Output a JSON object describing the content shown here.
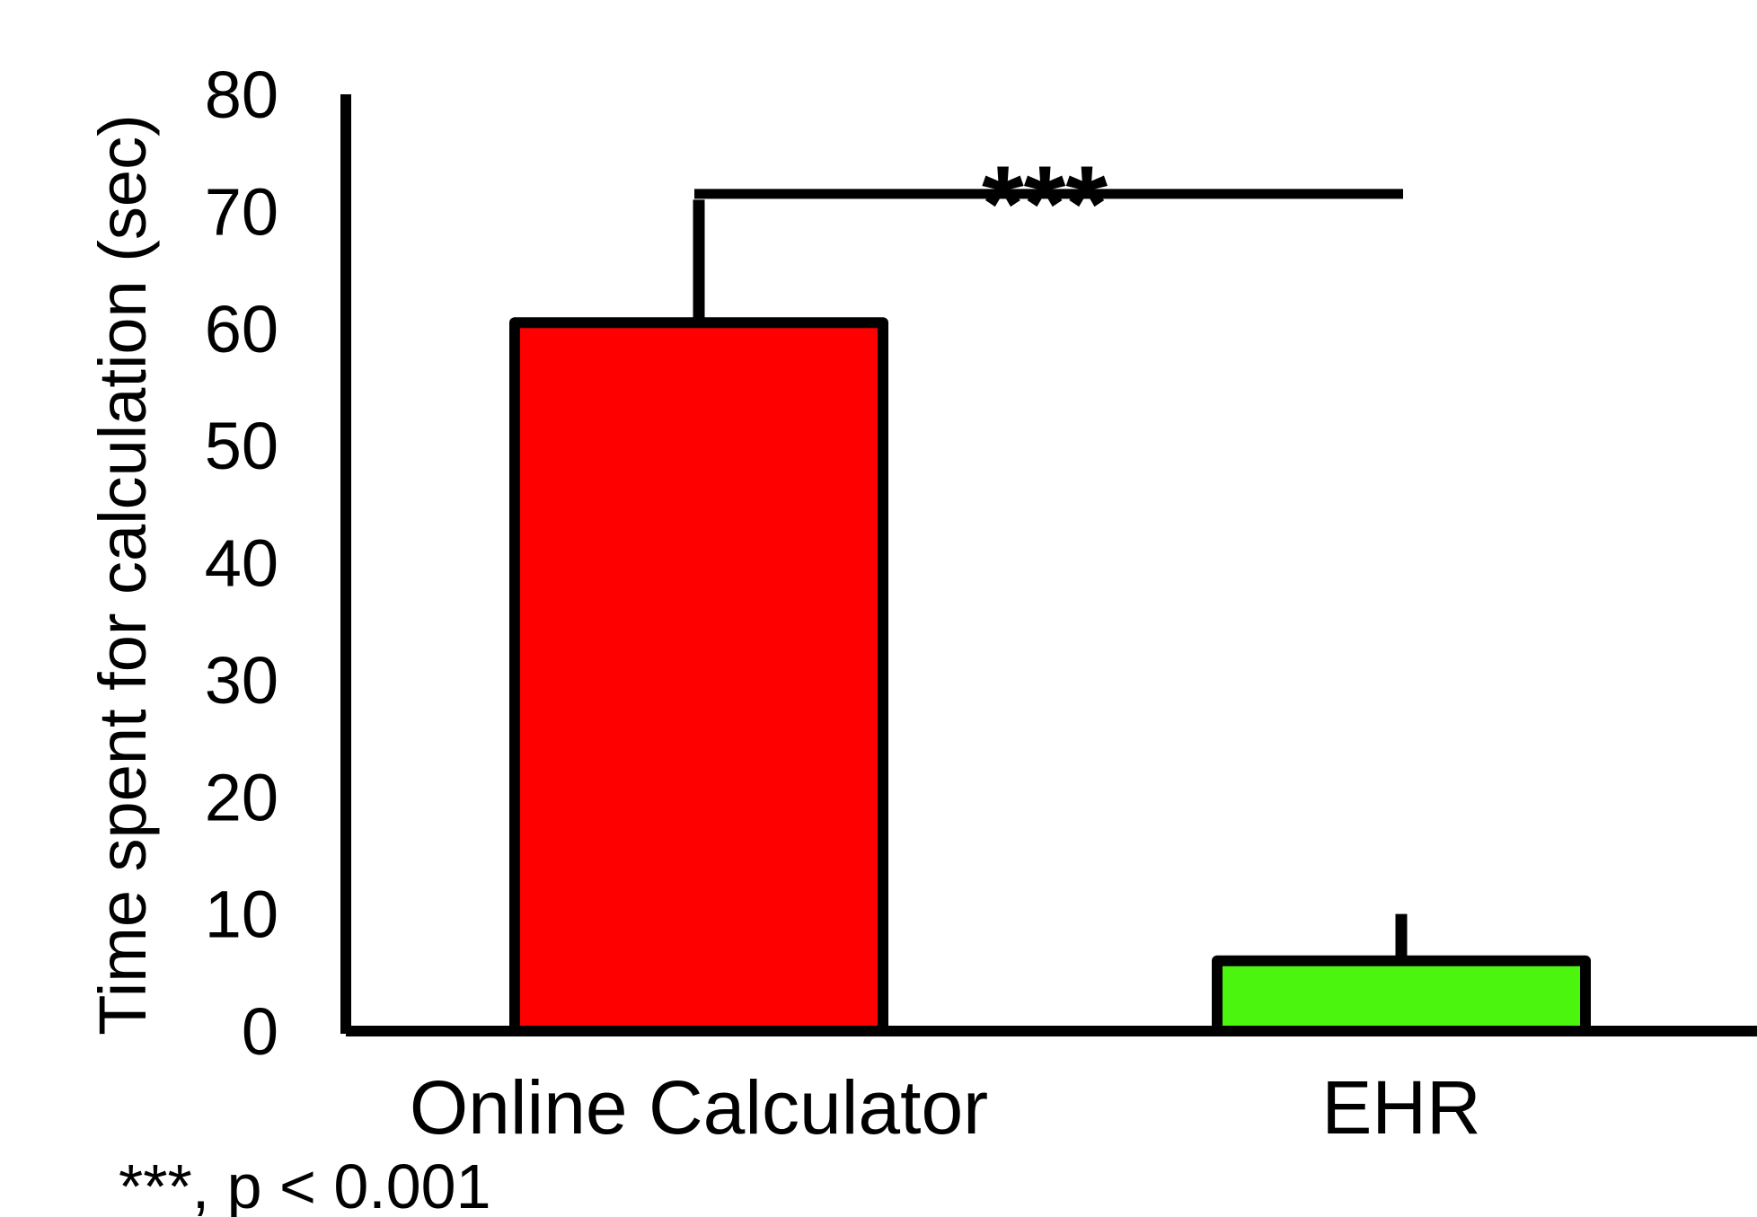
{
  "chart_data": {
    "type": "bar",
    "categories": [
      "Online Calculator",
      "EHR"
    ],
    "values": [
      60.5,
      6
    ],
    "error_bars": [
      10.5,
      4
    ],
    "colors": [
      "#ff0000",
      "#4cf50e"
    ],
    "ylabel": "Time spent for calculation  (sec)",
    "xlabel": "",
    "ylim": [
      0,
      80
    ],
    "yticks": [
      0,
      10,
      20,
      30,
      40,
      50,
      60,
      70,
      80
    ],
    "grid": false,
    "legend": "none",
    "significance": {
      "between": [
        "Online Calculator",
        "EHR"
      ],
      "label": "***",
      "level": 71.5
    },
    "footnote": "***, p < 0.001"
  }
}
